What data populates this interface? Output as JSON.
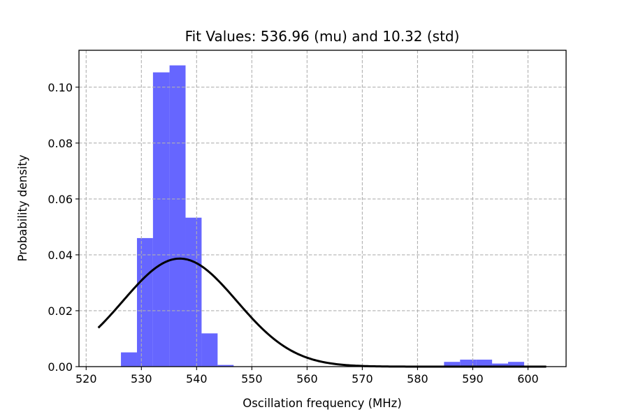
{
  "chart_data": {
    "type": "histogram",
    "title": "Fit Values: 536.96 (mu) and 10.32 (std)",
    "xlabel": "Oscillation frequency (MHz)",
    "ylabel": "Probability density",
    "xlim": [
      518.7,
      606.9
    ],
    "ylim": [
      0,
      0.1132
    ],
    "xticks": [
      520,
      530,
      540,
      550,
      560,
      570,
      580,
      590,
      600
    ],
    "yticks": [
      0.0,
      0.02,
      0.04,
      0.06,
      0.08,
      0.1
    ],
    "ytick_labels": [
      "0.00",
      "0.02",
      "0.04",
      "0.06",
      "0.08",
      "0.10"
    ],
    "grid": true,
    "bins": [
      {
        "x0": 526.3,
        "x1": 529.2,
        "density": 0.0051
      },
      {
        "x0": 529.2,
        "x1": 532.1,
        "density": 0.046
      },
      {
        "x0": 532.1,
        "x1": 535.1,
        "density": 0.1053
      },
      {
        "x0": 535.1,
        "x1": 538.0,
        "density": 0.1078
      },
      {
        "x0": 538.0,
        "x1": 540.9,
        "density": 0.0533
      },
      {
        "x0": 540.9,
        "x1": 543.8,
        "density": 0.0119
      },
      {
        "x0": 543.8,
        "x1": 546.7,
        "density": 0.0006
      },
      {
        "x0": 584.8,
        "x1": 587.7,
        "density": 0.0017
      },
      {
        "x0": 587.7,
        "x1": 590.6,
        "density": 0.0025
      },
      {
        "x0": 590.6,
        "x1": 593.5,
        "density": 0.0025
      },
      {
        "x0": 593.5,
        "x1": 596.4,
        "density": 0.0011
      },
      {
        "x0": 596.4,
        "x1": 599.3,
        "density": 0.0017
      }
    ],
    "fit": {
      "type": "normal_pdf",
      "mu": 536.96,
      "std": 10.32,
      "x_range": [
        522.2,
        603.3
      ]
    },
    "colors": {
      "bars": "#6666ff",
      "fit_line": "#000000",
      "grid": "#b0b0b0"
    }
  }
}
